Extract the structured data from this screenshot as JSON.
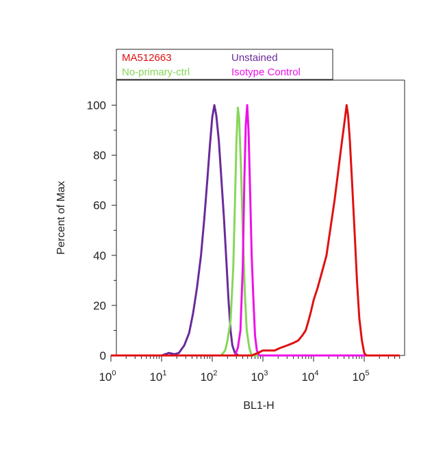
{
  "chart_data": {
    "type": "line",
    "xlabel": "BL1-H",
    "ylabel": "Percent of Max",
    "xscale": "log",
    "xlim": [
      1,
      500000
    ],
    "ylim": [
      0,
      110
    ],
    "x_ticks": [
      {
        "base": "10",
        "exp": "0"
      },
      {
        "base": "10",
        "exp": "1"
      },
      {
        "base": "10",
        "exp": "2"
      },
      {
        "base": "10",
        "exp": "3"
      },
      {
        "base": "10",
        "exp": "4"
      },
      {
        "base": "10",
        "exp": "5"
      }
    ],
    "y_ticks": [
      "0",
      "20",
      "40",
      "60",
      "80",
      "100"
    ],
    "legend_position": "top",
    "series": [
      {
        "name": "Unstained",
        "color": "#6a2a9a",
        "points": [
          [
            1,
            0
          ],
          [
            10,
            0
          ],
          [
            14,
            1
          ],
          [
            18,
            0.5
          ],
          [
            22,
            1
          ],
          [
            28,
            4
          ],
          [
            35,
            9
          ],
          [
            42,
            17
          ],
          [
            50,
            27
          ],
          [
            60,
            40
          ],
          [
            70,
            55
          ],
          [
            80,
            70
          ],
          [
            90,
            84
          ],
          [
            100,
            95
          ],
          [
            110,
            100
          ],
          [
            120,
            96
          ],
          [
            135,
            86
          ],
          [
            150,
            72
          ],
          [
            170,
            55
          ],
          [
            190,
            38
          ],
          [
            210,
            22
          ],
          [
            230,
            10
          ],
          [
            250,
            4
          ],
          [
            280,
            1
          ],
          [
            330,
            0
          ],
          [
            500000,
            0
          ]
        ]
      },
      {
        "name": "No-primary-ctrl",
        "color": "#88d65a",
        "points": [
          [
            1,
            0
          ],
          [
            150,
            0
          ],
          [
            180,
            2
          ],
          [
            200,
            6
          ],
          [
            230,
            14
          ],
          [
            260,
            35
          ],
          [
            280,
            60
          ],
          [
            300,
            85
          ],
          [
            320,
            99
          ],
          [
            340,
            95
          ],
          [
            370,
            75
          ],
          [
            400,
            50
          ],
          [
            440,
            25
          ],
          [
            480,
            10
          ],
          [
            540,
            3
          ],
          [
            600,
            0
          ],
          [
            500000,
            0
          ]
        ]
      },
      {
        "name": "Isotype Control",
        "color": "#ee10e8",
        "points": [
          [
            1,
            0
          ],
          [
            280,
            0
          ],
          [
            320,
            3
          ],
          [
            360,
            10
          ],
          [
            400,
            35
          ],
          [
            430,
            70
          ],
          [
            460,
            92
          ],
          [
            490,
            100
          ],
          [
            520,
            90
          ],
          [
            560,
            65
          ],
          [
            600,
            40
          ],
          [
            650,
            22
          ],
          [
            700,
            8
          ],
          [
            760,
            2
          ],
          [
            850,
            0
          ],
          [
            500000,
            0
          ]
        ]
      },
      {
        "name": "MA512663",
        "color": "#e01010",
        "points": [
          [
            1,
            0
          ],
          [
            600,
            0
          ],
          [
            800,
            1
          ],
          [
            1000,
            2
          ],
          [
            1300,
            2
          ],
          [
            1700,
            2
          ],
          [
            2200,
            3
          ],
          [
            3000,
            4
          ],
          [
            4000,
            5
          ],
          [
            5000,
            6
          ],
          [
            6000,
            8
          ],
          [
            7000,
            10
          ],
          [
            8000,
            14
          ],
          [
            9000,
            18
          ],
          [
            10000,
            22
          ],
          [
            12000,
            27
          ],
          [
            15000,
            34
          ],
          [
            18000,
            40
          ],
          [
            22000,
            52
          ],
          [
            26000,
            62
          ],
          [
            30000,
            72
          ],
          [
            35000,
            83
          ],
          [
            40000,
            92
          ],
          [
            45000,
            100
          ],
          [
            48000,
            96
          ],
          [
            52000,
            86
          ],
          [
            58000,
            68
          ],
          [
            65000,
            48
          ],
          [
            72000,
            30
          ],
          [
            80000,
            15
          ],
          [
            90000,
            6
          ],
          [
            100000,
            1
          ],
          [
            110000,
            0
          ],
          [
            500000,
            0
          ]
        ]
      }
    ]
  }
}
